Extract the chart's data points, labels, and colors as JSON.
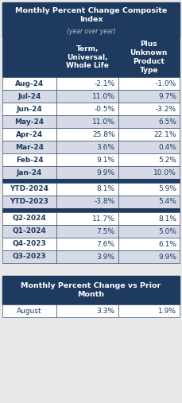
{
  "title1_line1": "Monthly Percent Change Composite",
  "title1_line2": "Index",
  "subtitle1": "(year over year)",
  "col1_header": "Term,\nUniversal,\nWhole Life",
  "col2_header": "Plus\nUnknown\nProduct\nType",
  "rows": [
    [
      "Aug-24",
      "-2.1%",
      "-1.0%"
    ],
    [
      "Jul-24",
      "11.0%",
      "9.7%"
    ],
    [
      "Jun-24",
      "-0.5%",
      "-3.2%"
    ],
    [
      "May-24",
      "11.0%",
      "6.5%"
    ],
    [
      "Apr-24",
      "25.8%",
      "22.1%"
    ],
    [
      "Mar-24",
      "3.6%",
      "0.4%"
    ],
    [
      "Feb-24",
      "9.1%",
      "5.2%"
    ],
    [
      "Jan-24",
      "9.9%",
      "10.0%"
    ]
  ],
  "ytd_rows": [
    [
      "YTD-2024",
      "8.1%",
      "5.9%"
    ],
    [
      "YTD-2023",
      "-3.8%",
      "5.4%"
    ]
  ],
  "q_rows": [
    [
      "Q2-2024",
      "11.7%",
      "8.1%"
    ],
    [
      "Q1-2024",
      "7.5%",
      "5.0%"
    ],
    [
      "Q4-2023",
      "7.6%",
      "6.1%"
    ],
    [
      "Q3-2023",
      "3.9%",
      "9.9%"
    ]
  ],
  "title2": "Monthly Percent Change vs Prior\nMonth",
  "bottom_rows": [
    [
      "August",
      "3.3%",
      "1.9%"
    ]
  ],
  "header_bg": "#1e3a5f",
  "header_text": "#ffffff",
  "row_white_bg": "#ffffff",
  "row_gray_bg": "#d6dae6",
  "separator_bg": "#1e3a5f",
  "border_color": "#1e3a5f",
  "data_text": "#1e3a5f",
  "bg_color": "#e8e8e8",
  "font_size_title": 6.8,
  "font_size_subtitle": 5.5,
  "font_size_data": 6.5,
  "font_size_col_header": 6.5
}
